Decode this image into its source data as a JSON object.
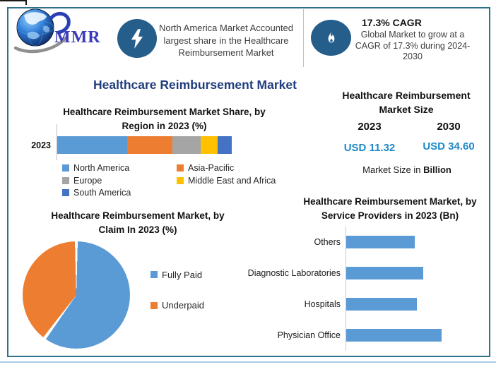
{
  "brand": {
    "logo_text": "MMR"
  },
  "banner": {
    "highlight": {
      "icon": "lightning-icon",
      "lines": [
        "North America Market Accounted",
        "largest share in the Healthcare",
        "Reimbursement Market"
      ]
    },
    "cagr": {
      "icon": "flame-icon",
      "title": "17.3% CAGR",
      "lines": [
        "Global Market to grow at a",
        "CAGR of 17.3% during 2024-",
        "2030"
      ]
    }
  },
  "main_title": "Healthcare Reimbursement Market",
  "market_size_panel": {
    "title_lines": [
      "Healthcare Reimbursement",
      "Market Size"
    ],
    "columns": [
      {
        "year": "2023",
        "value": "USD 11.32"
      },
      {
        "year": "2030",
        "value": "USD 34.60"
      }
    ],
    "footnote_prefix": "Market Size in ",
    "footnote_bold": "Billion"
  },
  "chart_data": [
    {
      "type": "bar",
      "subtype": "stacked-horizontal",
      "title": "Healthcare Reimbursement Market Share, by Region in 2023 (%)",
      "title_lines": [
        "Healthcare Reimbursement Market Share, by",
        "Region in 2023 (%)"
      ],
      "categories": [
        "2023"
      ],
      "unit": "%",
      "series": [
        {
          "name": "North America",
          "value": 40,
          "color": "#5B9BD5"
        },
        {
          "name": "Asia-Pacific",
          "value": 26,
          "color": "#ED7D31"
        },
        {
          "name": "Europe",
          "value": 16,
          "color": "#A5A5A5"
        },
        {
          "name": "Middle East and Africa",
          "value": 10,
          "color": "#FFC000"
        },
        {
          "name": "South America",
          "value": 8,
          "color": "#4472C4"
        }
      ],
      "legend_position": "bottom"
    },
    {
      "type": "pie",
      "title": "Healthcare Reimbursement Market, by Claim In 2023 (%)",
      "title_lines": [
        "Healthcare Reimbursement Market, by",
        "Claim In 2023 (%)"
      ],
      "labels": [
        "Fully Paid",
        "Underpaid"
      ],
      "values": [
        60,
        40
      ],
      "colors": [
        "#5B9BD5",
        "#ED7D31"
      ],
      "start_angle_deg": 0,
      "direction": "clockwise",
      "legend_position": "right"
    },
    {
      "type": "bar",
      "subtype": "horizontal",
      "title": "Healthcare Reimbursement Market, by Service Providers in 2023 (Bn)",
      "title_lines": [
        "Healthcare Reimbursement Market, by",
        "Service Providers in 2023 (Bn)"
      ],
      "categories": [
        "Others",
        "Diagnostic Laboratories",
        "Hospitals",
        "Physician Office"
      ],
      "values_relative_to_max": [
        0.72,
        0.81,
        0.74,
        1.0
      ],
      "bar_color": "#5B9BD5",
      "value_axis_labels": "none"
    }
  ],
  "colors": {
    "frame_border": "#2E7188",
    "icon_circle": "#265E8B",
    "title_navy": "#1F3D7C",
    "value_blue": "#1F8AC9",
    "body_text": "#3F3F3F",
    "bottom_edge_line": "#A9CCE8"
  }
}
